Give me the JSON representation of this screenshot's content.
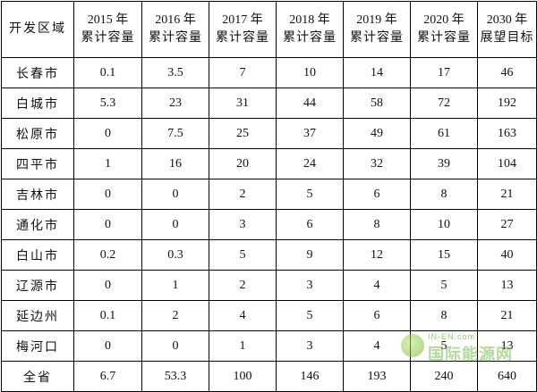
{
  "table": {
    "corner_header": "开发区域",
    "columns": [
      {
        "year": "2015 年",
        "sub": "累计容量"
      },
      {
        "year": "2016 年",
        "sub": "累计容量"
      },
      {
        "year": "2017 年",
        "sub": "累计容量"
      },
      {
        "year": "2018 年",
        "sub": "累计容量"
      },
      {
        "year": "2019 年",
        "sub": "累计容量"
      },
      {
        "year": "2020 年",
        "sub": "累计容量"
      },
      {
        "year": "2030 年",
        "sub": "展望目标"
      }
    ],
    "rows": [
      {
        "region": "长春市",
        "values": [
          "0.1",
          "3.5",
          "7",
          "10",
          "14",
          "17",
          "46"
        ]
      },
      {
        "region": "白城市",
        "values": [
          "5.3",
          "23",
          "31",
          "44",
          "58",
          "72",
          "192"
        ]
      },
      {
        "region": "松原市",
        "values": [
          "0",
          "7.5",
          "25",
          "37",
          "49",
          "61",
          "163"
        ]
      },
      {
        "region": "四平市",
        "values": [
          "1",
          "16",
          "20",
          "24",
          "32",
          "39",
          "104"
        ]
      },
      {
        "region": "吉林市",
        "values": [
          "0",
          "0",
          "2",
          "5",
          "6",
          "8",
          "21"
        ]
      },
      {
        "region": "通化市",
        "values": [
          "0",
          "0",
          "3",
          "6",
          "8",
          "10",
          "27"
        ]
      },
      {
        "region": "白山市",
        "values": [
          "0.2",
          "0.3",
          "5",
          "9",
          "12",
          "15",
          "40"
        ]
      },
      {
        "region": "辽源市",
        "values": [
          "0",
          "1",
          "2",
          "3",
          "4",
          "5",
          "13"
        ]
      },
      {
        "region": "延边州",
        "values": [
          "0.1",
          "2",
          "4",
          "5",
          "6",
          "8",
          "21"
        ]
      },
      {
        "region": "梅河口",
        "values": [
          "0",
          "0",
          "1",
          "3",
          "4",
          "5",
          "13"
        ]
      },
      {
        "region": "全省",
        "values": [
          "6.7",
          "53.3",
          "100",
          "146",
          "193",
          "240",
          "640"
        ]
      }
    ]
  },
  "watermark": {
    "en": "IN-EN.com",
    "cn": "国际能源网"
  }
}
